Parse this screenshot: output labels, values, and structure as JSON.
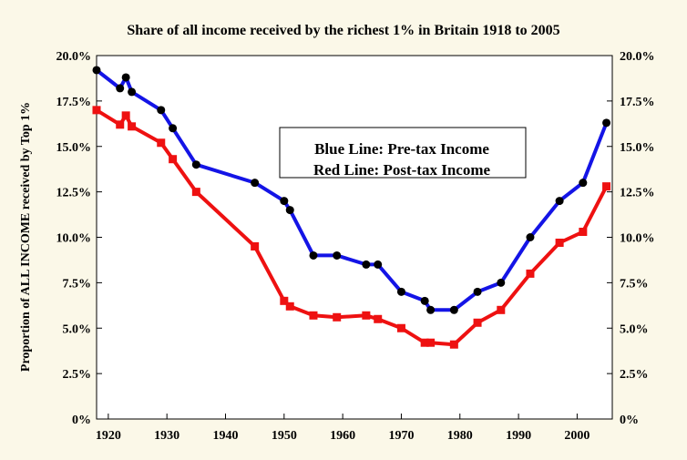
{
  "chart_data": {
    "type": "line",
    "title": "Share of all income received by the richest 1% in Britain 1918 to 2005",
    "ylabel": "Proportion of ALL INCOME received by Top 1%",
    "xlabel": "",
    "xlim": [
      1918,
      2006
    ],
    "ylim": [
      0,
      20
    ],
    "x_ticks": [
      1920,
      1930,
      1940,
      1950,
      1960,
      1970,
      1980,
      1990,
      2000
    ],
    "x_tick_labels": [
      "1920",
      "1930",
      "1940",
      "1950",
      "1960",
      "1970",
      "1980",
      "1990",
      "2000"
    ],
    "y_ticks": [
      0,
      2.5,
      5,
      7.5,
      10,
      12.5,
      15,
      17.5,
      20
    ],
    "y_tick_labels": [
      "0%",
      "2.5%",
      "5.0%",
      "7.5%",
      "10.0%",
      "12.5%",
      "15.0%",
      "17.5%",
      "20.0%"
    ],
    "y_tick_labels_right": [
      "0%",
      "2.5%",
      "5.0%",
      "7.5%",
      "10.0%",
      "12.5%",
      "15.0%",
      "17.5%",
      "20.0%"
    ],
    "grid": false,
    "legend_box": {
      "placement": "center-top",
      "lines": [
        "Blue Line: Pre-tax Income",
        "Red Line: Post-tax Income"
      ]
    },
    "series": [
      {
        "color": "#1414e6",
        "marker": "circle",
        "marker_color": "#000000",
        "x": [
          1918,
          1922,
          1923,
          1924,
          1929,
          1931,
          1935,
          1945,
          1950,
          1951,
          1955,
          1959,
          1964,
          1966,
          1970,
          1974,
          1975,
          1979,
          1983,
          1987,
          1992,
          1997,
          2001,
          2005
        ],
        "y": [
          19.2,
          18.2,
          18.8,
          18.0,
          17.0,
          16.0,
          14.0,
          13.0,
          12.0,
          11.5,
          9.0,
          9.0,
          8.5,
          8.5,
          7.0,
          6.5,
          6.0,
          6.0,
          7.0,
          7.5,
          10.0,
          12.0,
          13.0,
          16.3
        ]
      },
      {
        "color": "#ee1111",
        "marker": "square",
        "marker_color": "#ee1111",
        "x": [
          1918,
          1922,
          1923,
          1924,
          1929,
          1931,
          1935,
          1945,
          1950,
          1951,
          1955,
          1959,
          1964,
          1966,
          1970,
          1974,
          1975,
          1979,
          1983,
          1987,
          1992,
          1997,
          2001,
          2005
        ],
        "y": [
          17.0,
          16.2,
          16.7,
          16.1,
          15.2,
          14.3,
          12.5,
          9.5,
          6.5,
          6.2,
          5.7,
          5.6,
          5.7,
          5.5,
          5.0,
          4.2,
          4.2,
          4.1,
          5.3,
          6.0,
          8.0,
          9.7,
          10.3,
          12.8
        ]
      }
    ]
  }
}
